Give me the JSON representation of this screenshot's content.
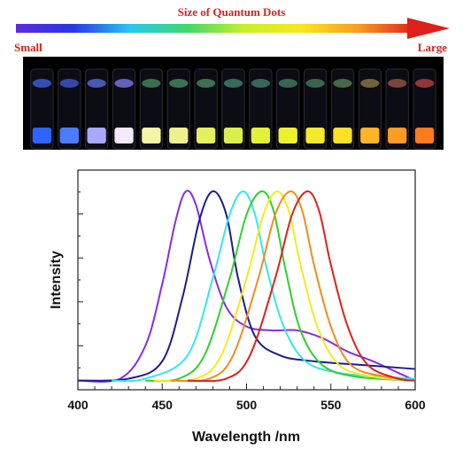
{
  "banner": {
    "title": "Size of Quantum Dots",
    "small_label": "Small",
    "large_label": "Large",
    "gradient_colors": [
      "#5b2cd8",
      "#2a36e6",
      "#27c7f0",
      "#3fd86a",
      "#c8f02a",
      "#f7e81e",
      "#f79a1e",
      "#e0201a"
    ]
  },
  "vial_photo": {
    "count": 15,
    "background": "#000000",
    "bottom_colors": [
      "#2f63ff",
      "#4a7cff",
      "#a8a8ff",
      "#f2eaff",
      "#f4f6a6",
      "#eef18c",
      "#e3ef5e",
      "#dcee4c",
      "#e3f238",
      "#eef02e",
      "#f6e92a",
      "#fde02a",
      "#ffb42a",
      "#ff9a22",
      "#ff7a1c"
    ],
    "top_colors": [
      "#3a55c8",
      "#3b4fc0",
      "#5060c8",
      "#6a6ad2",
      "#3e7a52",
      "#3e7e5a",
      "#3f7b5a",
      "#3a7560",
      "#3a7060",
      "#3a7058",
      "#3c7052",
      "#50704a",
      "#7d6a3e",
      "#8a4a3e",
      "#a03a3a"
    ]
  },
  "chart_data": {
    "type": "line",
    "xlabel": "Wavelength /nm",
    "ylabel": "Intensity",
    "xlim": [
      400,
      600
    ],
    "ylim": [
      0,
      1
    ],
    "xticks": [
      400,
      450,
      500,
      550,
      600
    ],
    "grid": false,
    "legend": "none",
    "series": [
      {
        "color": "#8b2be2",
        "values": [
          [
            400,
            0.02
          ],
          [
            425,
            0.03
          ],
          [
            440,
            0.2
          ],
          [
            450,
            0.52
          ],
          [
            458,
            0.85
          ],
          [
            464,
            1.0
          ],
          [
            470,
            0.93
          ],
          [
            478,
            0.65
          ],
          [
            488,
            0.4
          ],
          [
            500,
            0.3
          ],
          [
            515,
            0.28
          ],
          [
            530,
            0.28
          ],
          [
            545,
            0.24
          ],
          [
            560,
            0.17
          ],
          [
            575,
            0.12
          ],
          [
            590,
            0.06
          ],
          [
            600,
            0.02
          ]
        ]
      },
      {
        "color": "#1c1c8c",
        "values": [
          [
            400,
            0.02
          ],
          [
            430,
            0.03
          ],
          [
            450,
            0.12
          ],
          [
            462,
            0.45
          ],
          [
            472,
            0.85
          ],
          [
            480,
            1.0
          ],
          [
            488,
            0.88
          ],
          [
            495,
            0.55
          ],
          [
            505,
            0.25
          ],
          [
            520,
            0.15
          ],
          [
            540,
            0.12
          ],
          [
            570,
            0.1
          ],
          [
            600,
            0.08
          ]
        ]
      },
      {
        "color": "#30e8f0",
        "values": [
          [
            420,
            0.02
          ],
          [
            440,
            0.03
          ],
          [
            465,
            0.15
          ],
          [
            480,
            0.55
          ],
          [
            490,
            0.88
          ],
          [
            498,
            1.0
          ],
          [
            505,
            0.88
          ],
          [
            512,
            0.6
          ],
          [
            522,
            0.3
          ],
          [
            535,
            0.12
          ],
          [
            555,
            0.06
          ],
          [
            580,
            0.04
          ],
          [
            600,
            0.03
          ]
        ]
      },
      {
        "color": "#2fcf2a",
        "values": [
          [
            440,
            0.02
          ],
          [
            460,
            0.03
          ],
          [
            475,
            0.15
          ],
          [
            490,
            0.55
          ],
          [
            500,
            0.88
          ],
          [
            509,
            1.0
          ],
          [
            516,
            0.9
          ],
          [
            523,
            0.6
          ],
          [
            532,
            0.28
          ],
          [
            545,
            0.1
          ],
          [
            565,
            0.04
          ],
          [
            600,
            0.02
          ]
        ]
      },
      {
        "color": "#f2ec1a",
        "values": [
          [
            445,
            0.02
          ],
          [
            470,
            0.03
          ],
          [
            485,
            0.15
          ],
          [
            500,
            0.55
          ],
          [
            510,
            0.88
          ],
          [
            518,
            1.0
          ],
          [
            525,
            0.9
          ],
          [
            532,
            0.62
          ],
          [
            542,
            0.3
          ],
          [
            555,
            0.1
          ],
          [
            575,
            0.04
          ],
          [
            600,
            0.02
          ]
        ]
      },
      {
        "color": "#f28c1a",
        "values": [
          [
            455,
            0.02
          ],
          [
            478,
            0.03
          ],
          [
            492,
            0.15
          ],
          [
            507,
            0.55
          ],
          [
            517,
            0.88
          ],
          [
            526,
            1.0
          ],
          [
            533,
            0.9
          ],
          [
            540,
            0.62
          ],
          [
            550,
            0.3
          ],
          [
            562,
            0.1
          ],
          [
            582,
            0.04
          ],
          [
            600,
            0.02
          ]
        ]
      },
      {
        "color": "#e0201a",
        "values": [
          [
            465,
            0.02
          ],
          [
            488,
            0.03
          ],
          [
            502,
            0.15
          ],
          [
            517,
            0.55
          ],
          [
            527,
            0.88
          ],
          [
            536,
            1.0
          ],
          [
            543,
            0.9
          ],
          [
            550,
            0.62
          ],
          [
            560,
            0.3
          ],
          [
            572,
            0.1
          ],
          [
            590,
            0.03
          ],
          [
            600,
            0.02
          ]
        ]
      }
    ]
  }
}
